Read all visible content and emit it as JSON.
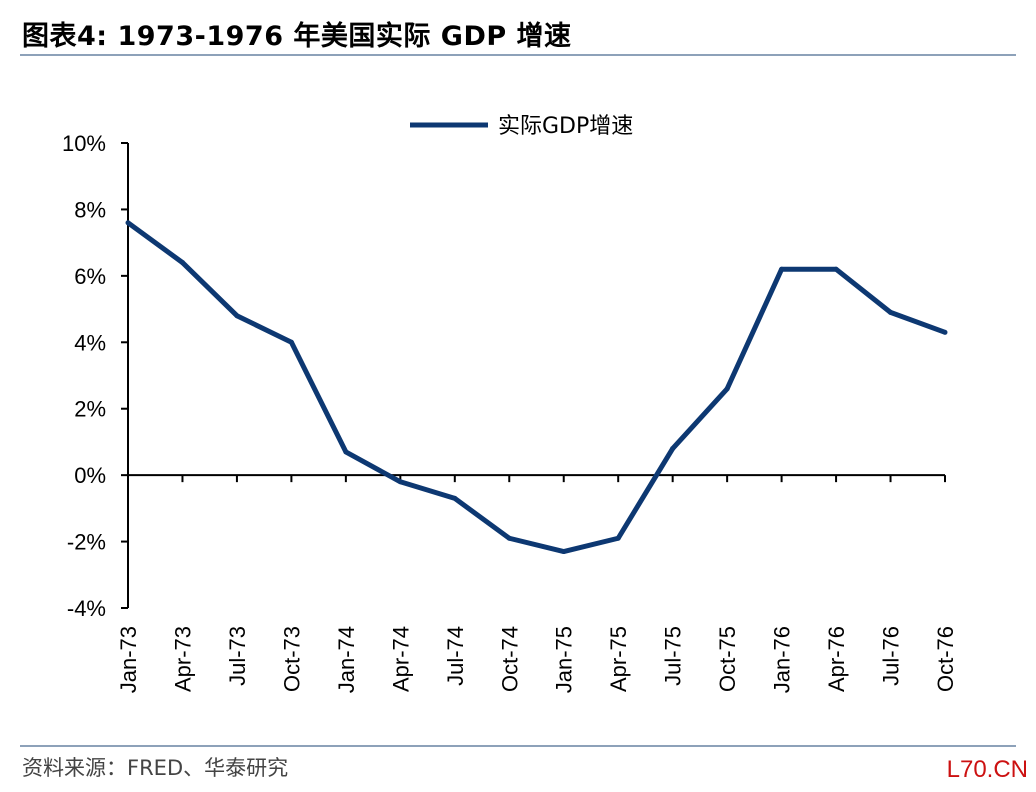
{
  "figure": {
    "title": "图表4:   1973-1976 年美国实际 GDP 增速",
    "source": "资料来源：FRED、华泰研究",
    "watermark": "L70.CN"
  },
  "colors": {
    "line": "#0d3872",
    "axis": "#000000",
    "rule": "#8da1b9",
    "watermark": "#cc1111"
  },
  "chart_data": {
    "type": "line",
    "title": "",
    "xlabel": "",
    "ylabel": "",
    "x": [
      "Jan-73",
      "Apr-73",
      "Jul-73",
      "Oct-73",
      "Jan-74",
      "Apr-74",
      "Jul-74",
      "Oct-74",
      "Jan-75",
      "Apr-75",
      "Jul-75",
      "Oct-75",
      "Jan-76",
      "Apr-76",
      "Jul-76",
      "Oct-76"
    ],
    "y_ticks": [
      "10%",
      "8%",
      "6%",
      "4%",
      "2%",
      "0%",
      "-2%",
      "-4%"
    ],
    "ylim": [
      -4,
      10
    ],
    "grid": false,
    "legend_position": "top-center",
    "series": [
      {
        "name": "实际GDP增速",
        "values": [
          7.6,
          6.4,
          4.8,
          4.0,
          0.7,
          -0.2,
          -0.7,
          -1.9,
          -2.3,
          -1.9,
          0.8,
          2.6,
          6.2,
          6.2,
          4.9,
          4.3
        ]
      }
    ]
  }
}
